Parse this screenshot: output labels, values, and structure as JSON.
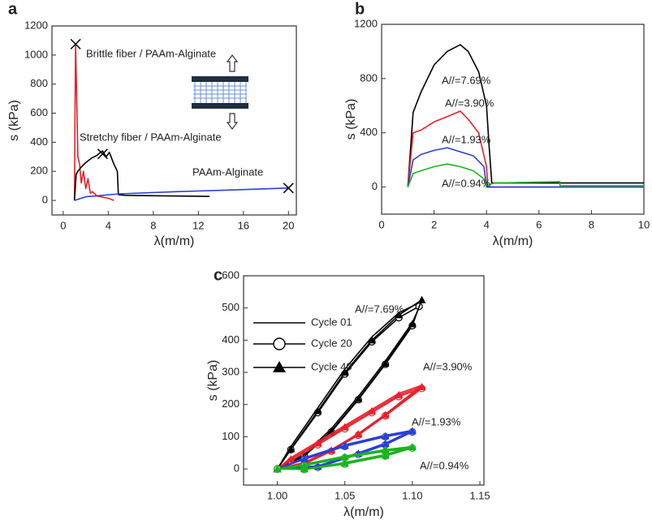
{
  "chart_data": [
    {
      "type": "line",
      "panel": "a",
      "xlabel": "λ(m/m)",
      "ylabel": "s (kPa)",
      "xlim": [
        -1,
        20.7
      ],
      "ylim": [
        -100,
        1200
      ],
      "xticks": [
        0,
        4,
        8,
        12,
        16,
        20
      ],
      "yticks": [
        0,
        200,
        400,
        600,
        800,
        1000,
        1200
      ],
      "annotations": [
        {
          "text": "Brittle fiber / PAAm-Alginate",
          "color": "#e8202a"
        },
        {
          "text": "Stretchy fiber / PAAm-Alginate",
          "color": "#000000"
        },
        {
          "text": "PAAm-Alginate",
          "color": "#2a3fd6"
        }
      ],
      "series": [
        {
          "color": "#e8202a",
          "marker": "none",
          "x": [
            1.0,
            1.05,
            1.1,
            1.2,
            1.3,
            1.45,
            1.6,
            1.8,
            2.0,
            2.2,
            2.4,
            2.6,
            3.0,
            4.0,
            4.5
          ],
          "values": [
            0,
            600,
            1075,
            700,
            300,
            250,
            120,
            200,
            80,
            150,
            50,
            60,
            30,
            15,
            0
          ]
        },
        {
          "color": "#000000",
          "marker": "none",
          "x": [
            1.0,
            1.15,
            1.3,
            1.6,
            2.0,
            2.5,
            3.0,
            3.3,
            3.5,
            3.8,
            4.1,
            4.5,
            4.8,
            4.9,
            5.5,
            8,
            13
          ],
          "values": [
            0,
            180,
            200,
            230,
            260,
            290,
            310,
            330,
            340,
            300,
            330,
            250,
            200,
            40,
            35,
            32,
            28
          ]
        },
        {
          "color": "#2a3fd6",
          "marker": "none",
          "x": [
            1.0,
            2,
            5,
            10,
            15,
            20
          ],
          "values": [
            0,
            25,
            45,
            60,
            72,
            85
          ]
        },
        {
          "color": "#000000",
          "marker": "x",
          "line": false,
          "x": [
            1.1,
            3.5,
            20
          ],
          "values": [
            1075,
            320,
            85
          ]
        }
      ]
    },
    {
      "type": "line",
      "panel": "b",
      "xlabel": "λ(m/m)",
      "ylabel": "s (kPa)",
      "xlim": [
        0,
        10
      ],
      "ylim": [
        -200,
        1200
      ],
      "xticks": [
        0,
        2,
        4,
        6,
        8,
        10
      ],
      "yticks": [
        0,
        400,
        800,
        1200
      ],
      "annotations": [
        {
          "text": "A//=7.69%",
          "color": "#000000"
        },
        {
          "text": "A//=3.90%",
          "color": "#e8202a"
        },
        {
          "text": "A//=1.93%",
          "color": "#2a3fd6"
        },
        {
          "text": "A//=0.94%",
          "color": "#1db31d"
        }
      ],
      "series": [
        {
          "color": "#000000",
          "marker": "none",
          "x": [
            1,
            1.2,
            1.5,
            2,
            2.5,
            3,
            3.3,
            3.7,
            4,
            4.1,
            4.2,
            10
          ],
          "values": [
            0,
            550,
            700,
            900,
            1000,
            1050,
            1000,
            850,
            600,
            300,
            30,
            30
          ]
        },
        {
          "color": "#e8202a",
          "marker": "none",
          "x": [
            1,
            1.2,
            1.5,
            2,
            2.5,
            3,
            3.3,
            3.7,
            4,
            4.05,
            10
          ],
          "values": [
            0,
            400,
            420,
            480,
            520,
            560,
            500,
            400,
            150,
            0,
            0
          ]
        },
        {
          "color": "#2a3fd6",
          "marker": "none",
          "x": [
            1,
            1.2,
            1.5,
            2,
            2.5,
            3,
            3.5,
            3.9,
            4,
            10
          ],
          "values": [
            0,
            200,
            240,
            270,
            290,
            260,
            230,
            150,
            0,
            0
          ]
        },
        {
          "color": "#1db31d",
          "marker": "none",
          "x": [
            1,
            1.2,
            1.5,
            2,
            2.5,
            3,
            3.5,
            3.9,
            4,
            4.3,
            6.8,
            6.8,
            10
          ],
          "values": [
            0,
            100,
            120,
            150,
            170,
            150,
            120,
            60,
            10,
            30,
            40,
            10,
            10
          ]
        }
      ]
    },
    {
      "type": "line",
      "panel": "c",
      "xlabel": "λ(m/m)",
      "ylabel": "s (kPa)",
      "xlim": [
        0.975,
        1.153
      ],
      "ylim": [
        -50,
        600
      ],
      "xticks": [
        {
          "value": 1,
          "label": "1.00"
        },
        {
          "value": 1.05,
          "label": "1.05"
        },
        {
          "value": 1.1,
          "label": "1.10"
        },
        {
          "value": 1.15,
          "label": "1.15"
        }
      ],
      "yticks": [
        0,
        100,
        200,
        300,
        400,
        500,
        600
      ],
      "legend": [
        {
          "name": "Cycle 01",
          "marker": "none"
        },
        {
          "name": "Cycle 20",
          "marker": "circle"
        },
        {
          "name": "Cycle 40",
          "marker": "triangle"
        }
      ],
      "annotations": [
        {
          "text": "A//=7.69%",
          "color": "#000000"
        },
        {
          "text": "A//=3.90%",
          "color": "#e8202a"
        },
        {
          "text": "A//=1.93%",
          "color": "#2a3fd6"
        },
        {
          "text": "A//=0.94%",
          "color": "#1db31d"
        }
      ],
      "series": [
        {
          "color": "#000000",
          "marker": "none",
          "x": [
            1.0,
            1.02,
            1.04,
            1.06,
            1.08,
            1.1,
            1.107,
            1.09,
            1.07,
            1.05,
            1.03,
            1.01,
            1.0
          ],
          "values": [
            0,
            45,
            125,
            225,
            335,
            455,
            520,
            485,
            410,
            310,
            190,
            70,
            0
          ]
        },
        {
          "color": "#000000",
          "marker": "circle",
          "x": [
            1.0,
            1.02,
            1.04,
            1.06,
            1.08,
            1.1,
            1.105,
            1.09,
            1.07,
            1.05,
            1.03,
            1.01,
            1.0
          ],
          "values": [
            0,
            40,
            115,
            215,
            325,
            445,
            505,
            470,
            395,
            295,
            175,
            60,
            0
          ]
        },
        {
          "color": "#000000",
          "marker": "triangle",
          "x": [
            1.0,
            1.02,
            1.04,
            1.06,
            1.08,
            1.1,
            1.107,
            1.09,
            1.07,
            1.05,
            1.03,
            1.01,
            1.0
          ],
          "values": [
            0,
            40,
            118,
            218,
            328,
            450,
            525,
            478,
            400,
            300,
            180,
            62,
            0
          ]
        },
        {
          "color": "#e8202a",
          "marker": "none",
          "x": [
            1.0,
            1.02,
            1.04,
            1.06,
            1.08,
            1.107,
            1.09,
            1.07,
            1.05,
            1.03,
            1.01,
            1.0
          ],
          "values": [
            0,
            20,
            60,
            110,
            170,
            260,
            235,
            185,
            135,
            85,
            35,
            0
          ]
        },
        {
          "color": "#e8202a",
          "marker": "circle",
          "x": [
            1.0,
            1.02,
            1.04,
            1.06,
            1.08,
            1.107,
            1.09,
            1.07,
            1.05,
            1.03,
            1.01,
            1.0
          ],
          "values": [
            0,
            15,
            55,
            105,
            165,
            250,
            225,
            175,
            125,
            75,
            25,
            0
          ]
        },
        {
          "color": "#e8202a",
          "marker": "triangle",
          "x": [
            1.0,
            1.02,
            1.04,
            1.06,
            1.08,
            1.107,
            1.09,
            1.07,
            1.05,
            1.03,
            1.01,
            1.0
          ],
          "values": [
            0,
            18,
            58,
            108,
            168,
            255,
            230,
            180,
            130,
            80,
            30,
            0
          ]
        },
        {
          "color": "#2a3fd6",
          "marker": "none",
          "x": [
            1.0,
            1.03,
            1.06,
            1.08,
            1.1,
            1.08,
            1.05,
            1.02,
            1.0
          ],
          "values": [
            0,
            10,
            50,
            80,
            120,
            105,
            75,
            35,
            0
          ]
        },
        {
          "color": "#2a3fd6",
          "marker": "circle",
          "x": [
            1.0,
            1.03,
            1.06,
            1.08,
            1.1,
            1.08,
            1.05,
            1.02,
            1.0
          ],
          "values": [
            0,
            5,
            45,
            75,
            115,
            100,
            70,
            30,
            0
          ]
        },
        {
          "color": "#2a3fd6",
          "marker": "triangle",
          "x": [
            1.0,
            1.03,
            1.06,
            1.08,
            1.1,
            1.08,
            1.05,
            1.02,
            1.0
          ],
          "values": [
            0,
            8,
            48,
            78,
            118,
            102,
            72,
            32,
            0
          ]
        },
        {
          "color": "#1db31d",
          "marker": "none",
          "x": [
            1.0,
            1.02,
            1.05,
            1.08,
            1.1,
            1.08,
            1.05,
            1.02,
            1.0
          ],
          "values": [
            0,
            0,
            20,
            45,
            70,
            60,
            40,
            15,
            0
          ]
        },
        {
          "color": "#1db31d",
          "marker": "circle",
          "x": [
            1.0,
            1.02,
            1.05,
            1.08,
            1.1,
            1.08,
            1.05,
            1.02,
            1.0
          ],
          "values": [
            0,
            -2,
            15,
            40,
            65,
            55,
            35,
            10,
            0
          ]
        },
        {
          "color": "#1db31d",
          "marker": "triangle",
          "x": [
            1.0,
            1.02,
            1.05,
            1.08,
            1.1,
            1.08,
            1.05,
            1.02,
            1.0
          ],
          "values": [
            0,
            0,
            18,
            42,
            68,
            58,
            38,
            12,
            0
          ]
        }
      ]
    }
  ]
}
